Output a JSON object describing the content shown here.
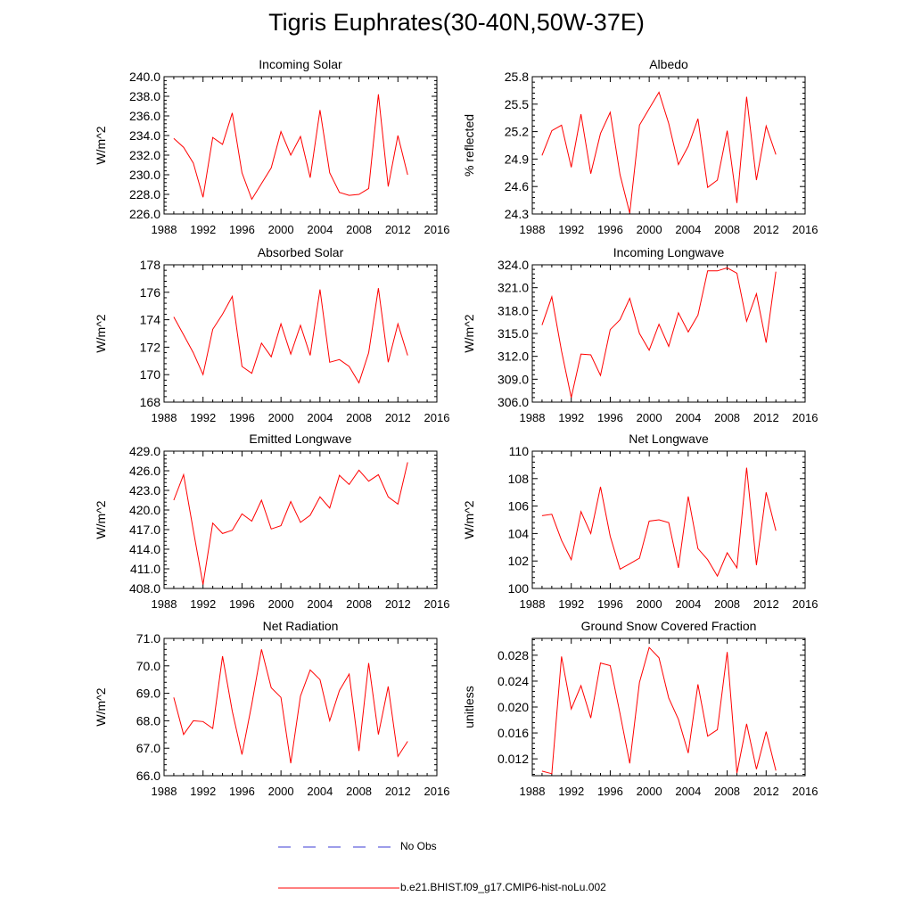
{
  "title": "Tigris Euphrates(30-40N,50W-37E)",
  "colors": {
    "series": "#ff0000",
    "obs": "#3b3bd6",
    "axis": "#000000"
  },
  "legend": {
    "obs_label": "No Obs",
    "model_label": "b.e21.BHIST.f09_g17.CMIP6-hist-noLu.002"
  },
  "chart_data": [
    {
      "type": "line",
      "title": "Incoming Solar",
      "ylabel": "W/m^2",
      "xlim": [
        1988,
        2016
      ],
      "xticks": [
        1988,
        1992,
        1996,
        2000,
        2004,
        2008,
        2012,
        2016
      ],
      "ylim": [
        226,
        240
      ],
      "yticks": [
        "226.0",
        "228.0",
        "230.0",
        "232.0",
        "234.0",
        "236.0",
        "238.0",
        "240.0"
      ],
      "x": [
        1989,
        1990,
        1991,
        1992,
        1993,
        1994,
        1995,
        1996,
        1997,
        1998,
        1999,
        2000,
        2001,
        2002,
        2003,
        2004,
        2005,
        2006,
        2007,
        2008,
        2009,
        2010,
        2011,
        2012,
        2013
      ],
      "series": [
        {
          "values": [
            233.7,
            232.8,
            231.2,
            227.7,
            233.8,
            233.1,
            236.3,
            230.2,
            227.5,
            229.1,
            230.7,
            234.4,
            232.0,
            233.9,
            229.7,
            236.6,
            230.2,
            228.2,
            227.9,
            228.0,
            228.6,
            238.2,
            228.8,
            234.0,
            230.0
          ]
        }
      ]
    },
    {
      "type": "line",
      "title": "Albedo",
      "ylabel": "% reflected",
      "xlim": [
        1988,
        2016
      ],
      "xticks": [
        1988,
        1992,
        1996,
        2000,
        2004,
        2008,
        2012,
        2016
      ],
      "ylim": [
        24.3,
        25.8
      ],
      "yticks": [
        "24.3",
        "24.6",
        "24.9",
        "25.2",
        "25.5",
        "25.8"
      ],
      "x": [
        1989,
        1990,
        1991,
        1992,
        1993,
        1994,
        1995,
        1996,
        1997,
        1998,
        1999,
        2000,
        2001,
        2002,
        2003,
        2004,
        2005,
        2006,
        2007,
        2008,
        2009,
        2010,
        2011,
        2012,
        2013
      ],
      "series": [
        {
          "values": [
            24.94,
            25.21,
            25.27,
            24.81,
            25.39,
            24.74,
            25.18,
            25.41,
            24.73,
            24.31,
            25.27,
            25.45,
            25.63,
            25.29,
            24.84,
            25.04,
            25.34,
            24.59,
            24.67,
            25.21,
            24.42,
            25.58,
            24.67,
            25.26,
            24.95
          ]
        }
      ]
    },
    {
      "type": "line",
      "title": "Absorbed Solar",
      "ylabel": "W/m^2",
      "xlim": [
        1988,
        2016
      ],
      "xticks": [
        1988,
        1992,
        1996,
        2000,
        2004,
        2008,
        2012,
        2016
      ],
      "ylim": [
        168,
        178
      ],
      "yticks": [
        "168",
        "170",
        "172",
        "174",
        "176",
        "178"
      ],
      "x": [
        1989,
        1990,
        1991,
        1992,
        1993,
        1994,
        1995,
        1996,
        1997,
        1998,
        1999,
        2000,
        2001,
        2002,
        2003,
        2004,
        2005,
        2006,
        2007,
        2008,
        2009,
        2010,
        2011,
        2012,
        2013
      ],
      "series": [
        {
          "values": [
            174.2,
            172.9,
            171.6,
            170.0,
            173.3,
            174.4,
            175.7,
            170.6,
            170.1,
            172.3,
            171.3,
            173.7,
            171.5,
            173.6,
            171.4,
            176.2,
            170.9,
            171.1,
            170.6,
            169.4,
            171.6,
            176.3,
            170.9,
            173.7,
            171.4
          ]
        }
      ]
    },
    {
      "type": "line",
      "title": "Incoming Longwave",
      "ylabel": "W/m^2",
      "xlim": [
        1988,
        2016
      ],
      "xticks": [
        1988,
        1992,
        1996,
        2000,
        2004,
        2008,
        2012,
        2016
      ],
      "ylim": [
        306,
        324
      ],
      "yticks": [
        "306.0",
        "309.0",
        "312.0",
        "315.0",
        "318.0",
        "321.0",
        "324.0"
      ],
      "x": [
        1989,
        1990,
        1991,
        1992,
        1993,
        1994,
        1995,
        1996,
        1997,
        1998,
        1999,
        2000,
        2001,
        2002,
        2003,
        2004,
        2005,
        2006,
        2007,
        2008,
        2009,
        2010,
        2011,
        2012,
        2013
      ],
      "series": [
        {
          "values": [
            316.1,
            319.8,
            312.7,
            306.6,
            312.3,
            312.2,
            309.5,
            315.5,
            316.8,
            319.6,
            315.0,
            312.8,
            316.2,
            313.3,
            317.7,
            315.2,
            317.4,
            323.2,
            323.2,
            323.6,
            322.9,
            316.6,
            320.2,
            313.8,
            323.1
          ]
        }
      ]
    },
    {
      "type": "line",
      "title": "Emitted Longwave",
      "ylabel": "W/m^2",
      "xlim": [
        1988,
        2016
      ],
      "xticks": [
        1988,
        1992,
        1996,
        2000,
        2004,
        2008,
        2012,
        2016
      ],
      "ylim": [
        408,
        429
      ],
      "yticks": [
        "408.0",
        "411.0",
        "414.0",
        "417.0",
        "420.0",
        "423.0",
        "426.0",
        "429.0"
      ],
      "x": [
        1989,
        1990,
        1991,
        1992,
        1993,
        1994,
        1995,
        1996,
        1997,
        1998,
        1999,
        2000,
        2001,
        2002,
        2003,
        2004,
        2005,
        2006,
        2007,
        2008,
        2009,
        2010,
        2011,
        2012,
        2013
      ],
      "series": [
        {
          "values": [
            421.5,
            425.4,
            416.9,
            408.6,
            418.0,
            416.4,
            416.9,
            419.4,
            418.3,
            421.5,
            417.1,
            417.6,
            421.3,
            418.1,
            419.2,
            422.0,
            420.3,
            425.3,
            423.9,
            426.1,
            424.4,
            425.4,
            422.0,
            420.9,
            427.3
          ]
        }
      ]
    },
    {
      "type": "line",
      "title": "Net Longwave",
      "ylabel": "W/m^2",
      "xlim": [
        1988,
        2016
      ],
      "xticks": [
        1988,
        1992,
        1996,
        2000,
        2004,
        2008,
        2012,
        2016
      ],
      "ylim": [
        100,
        110
      ],
      "yticks": [
        "100",
        "102",
        "104",
        "106",
        "108",
        "110"
      ],
      "x": [
        1989,
        1990,
        1991,
        1992,
        1993,
        1994,
        1995,
        1996,
        1997,
        1998,
        1999,
        2000,
        2001,
        2002,
        2003,
        2004,
        2005,
        2006,
        2007,
        2008,
        2009,
        2010,
        2011,
        2012,
        2013
      ],
      "series": [
        {
          "values": [
            105.3,
            105.4,
            103.5,
            102.1,
            105.6,
            104.0,
            107.4,
            103.8,
            101.4,
            101.8,
            102.2,
            104.9,
            105.0,
            104.8,
            101.5,
            106.7,
            102.9,
            102.1,
            100.9,
            102.6,
            101.5,
            108.8,
            101.7,
            107.0,
            104.2
          ]
        }
      ]
    },
    {
      "type": "line",
      "title": "Net Radiation",
      "ylabel": "W/m^2",
      "xlim": [
        1988,
        2016
      ],
      "xticks": [
        1988,
        1992,
        1996,
        2000,
        2004,
        2008,
        2012,
        2016
      ],
      "ylim": [
        66,
        71
      ],
      "yticks": [
        "66.0",
        "67.0",
        "68.0",
        "69.0",
        "70.0",
        "71.0"
      ],
      "x": [
        1989,
        1990,
        1991,
        1992,
        1993,
        1994,
        1995,
        1996,
        1997,
        1998,
        1999,
        2000,
        2001,
        2002,
        2003,
        2004,
        2005,
        2006,
        2007,
        2008,
        2009,
        2010,
        2011,
        2012,
        2013
      ],
      "series": [
        {
          "values": [
            68.85,
            67.5,
            68.0,
            67.97,
            67.72,
            70.35,
            68.35,
            66.77,
            68.6,
            70.6,
            69.2,
            68.85,
            66.45,
            68.9,
            69.85,
            69.5,
            68.0,
            69.1,
            69.7,
            66.9,
            70.1,
            67.5,
            69.25,
            66.7,
            67.25
          ]
        }
      ]
    },
    {
      "type": "line",
      "title": "Ground Snow Covered Fraction",
      "ylabel": "unitless",
      "xlim": [
        1988,
        2016
      ],
      "xticks": [
        1988,
        1992,
        1996,
        2000,
        2004,
        2008,
        2012,
        2016
      ],
      "ylim": [
        0.0094,
        0.0306
      ],
      "yticks": [
        "0.012",
        "0.016",
        "0.020",
        "0.024",
        "0.028"
      ],
      "ytickvals": [
        0.012,
        0.016,
        0.02,
        0.024,
        0.028
      ],
      "x": [
        1989,
        1990,
        1991,
        1992,
        1993,
        1994,
        1995,
        1996,
        1997,
        1998,
        1999,
        2000,
        2001,
        2002,
        2003,
        2004,
        2005,
        2006,
        2007,
        2008,
        2009,
        2010,
        2011,
        2012,
        2013
      ],
      "series": [
        {
          "values": [
            0.0101,
            0.0097,
            0.0278,
            0.0197,
            0.0233,
            0.0183,
            0.0268,
            0.0264,
            0.019,
            0.0113,
            0.0238,
            0.0292,
            0.0276,
            0.0214,
            0.0181,
            0.0129,
            0.0235,
            0.0155,
            0.0165,
            0.0285,
            0.0098,
            0.0174,
            0.0104,
            0.0162,
            0.0102
          ]
        }
      ]
    }
  ]
}
